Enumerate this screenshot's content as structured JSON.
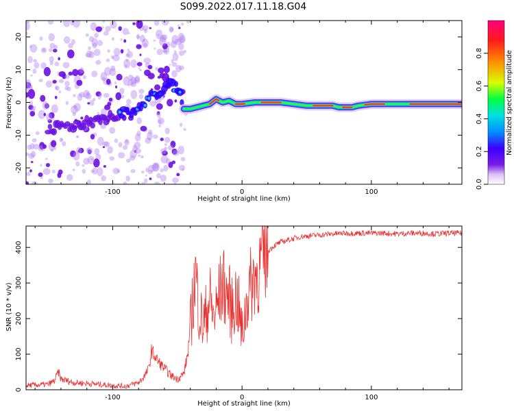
{
  "title": "S099.2022.017.11.18.G04",
  "chart_data": [
    {
      "type": "heatmap",
      "xlabel": "Height of straight line (km)",
      "ylabel": "Frequency (Hz)",
      "xlim": [
        -167,
        170
      ],
      "ylim": [
        -25,
        25
      ],
      "x_ticks": [
        -100,
        0,
        100
      ],
      "y_ticks": [
        -20,
        -10,
        0,
        10,
        20
      ],
      "colorbar": {
        "label": "Normalized spectral amplitude",
        "range": [
          0,
          1
        ],
        "ticks": [
          "0.0",
          "0.2",
          "0.4",
          "0.6",
          "0.8"
        ],
        "colors": [
          "#ffffff",
          "#d9c2f5",
          "#7a1be6",
          "#3a00ff",
          "#0090ff",
          "#00e0e0",
          "#00ff40",
          "#d8ff00",
          "#ff8c00",
          "#ff1a1a",
          "#ff0080"
        ]
      },
      "ridge": {
        "x": [
          -140,
          -120,
          -100,
          -85,
          -75,
          -65,
          -58,
          -52,
          -48,
          -45,
          -40,
          -35,
          -30,
          -25,
          -20,
          -15,
          -10,
          -5,
          0,
          10,
          20,
          30,
          40,
          50,
          60,
          70,
          75,
          80,
          85,
          90,
          100,
          110,
          120,
          130,
          140,
          150,
          160,
          170
        ],
        "y": [
          -8,
          -6,
          -4,
          -3,
          0,
          3,
          5,
          5,
          2,
          -2,
          -2,
          -1.5,
          -1,
          -0.5,
          1,
          0,
          0.5,
          -0.5,
          -0.5,
          0,
          0,
          0,
          -0.5,
          -1,
          -1,
          -1,
          -1.5,
          -1.5,
          -1.5,
          -1,
          -0.5,
          -0.5,
          -0.5,
          -0.5,
          -0.5,
          -0.5,
          -0.5,
          -0.5
        ]
      }
    },
    {
      "type": "line",
      "xlabel": "Height of straight line (km)",
      "ylabel": "SNR (10 * v/v)",
      "xlim": [
        -167,
        170
      ],
      "ylim": [
        0,
        460
      ],
      "x_ticks": [
        -100,
        0,
        100
      ],
      "y_ticks": [
        0,
        100,
        200,
        300,
        400
      ],
      "color": "#e8312f",
      "series": [
        {
          "x": [
            -167,
            -150,
            -145,
            -142,
            -140,
            -130,
            -120,
            -110,
            -100,
            -90,
            -80,
            -75,
            -72,
            -70,
            -65,
            -60,
            -55,
            -50,
            -45,
            -42,
            -38,
            -36,
            -35,
            -33,
            -30,
            -28,
            -25,
            -22,
            -20,
            -18,
            -15,
            -12,
            -10,
            -8,
            -5,
            -3,
            0,
            3,
            5,
            8,
            10,
            12,
            15,
            18,
            20,
            25,
            30,
            35,
            40,
            45,
            50,
            60,
            70,
            80,
            90,
            100,
            110,
            120,
            130,
            140,
            150,
            160,
            170
          ],
          "y": [
            12,
            15,
            25,
            50,
            30,
            20,
            18,
            15,
            12,
            10,
            20,
            40,
            60,
            110,
            80,
            60,
            40,
            30,
            45,
            100,
            250,
            330,
            290,
            220,
            180,
            210,
            260,
            200,
            220,
            260,
            300,
            270,
            260,
            220,
            260,
            240,
            150,
            230,
            280,
            300,
            330,
            320,
            360,
            380,
            390,
            405,
            415,
            420,
            425,
            430,
            432,
            435,
            438,
            440,
            440,
            440,
            440,
            438,
            440,
            440,
            438,
            440,
            440
          ]
        }
      ]
    }
  ]
}
